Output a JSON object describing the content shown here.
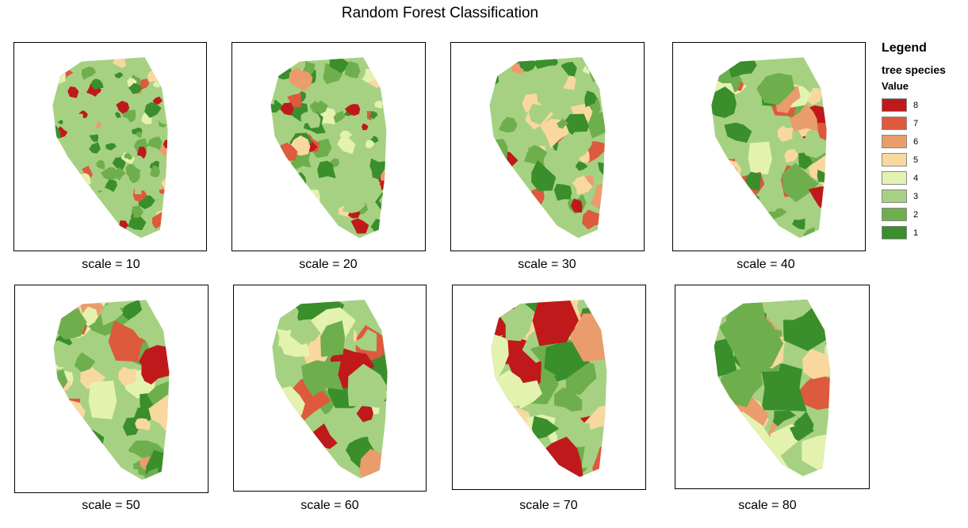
{
  "title": "Random Forest Classification",
  "legend": {
    "title": "Legend",
    "layer": "tree species",
    "field": "Value",
    "classes": [
      {
        "value": "8",
        "color": "#c0191b"
      },
      {
        "value": "7",
        "color": "#dd5a3d"
      },
      {
        "value": "6",
        "color": "#eb9c6c"
      },
      {
        "value": "5",
        "color": "#f9d8a0"
      },
      {
        "value": "4",
        "color": "#e4f2b0"
      },
      {
        "value": "3",
        "color": "#a6d183"
      },
      {
        "value": "2",
        "color": "#6fae4d"
      },
      {
        "value": "1",
        "color": "#3a8e2c"
      }
    ]
  },
  "maps": [
    {
      "caption": "scale = 10",
      "scale": 10
    },
    {
      "caption": "scale = 20",
      "scale": 20
    },
    {
      "caption": "scale = 30",
      "scale": 30
    },
    {
      "caption": "scale = 40",
      "scale": 40
    },
    {
      "caption": "scale = 50",
      "scale": 50
    },
    {
      "caption": "scale = 60",
      "scale": 60
    },
    {
      "caption": "scale = 70",
      "scale": 70
    },
    {
      "caption": "scale = 80",
      "scale": 80
    }
  ]
}
